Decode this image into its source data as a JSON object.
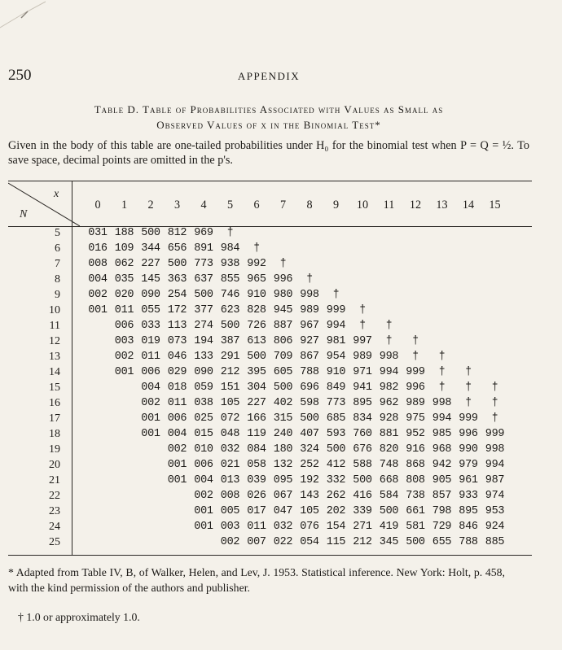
{
  "page": {
    "number": "250",
    "running_head": "APPENDIX"
  },
  "caption": {
    "line1": "Table D. Table of Probabilities Associated with Values as Small as",
    "line2": "Observed Values of x in the Binomial Test*"
  },
  "intro": "Given in the body of this table are one-tailed probabilities under H₀ for the binomial test when P = Q = ½. To save space, decimal points are omitted in the p's.",
  "table": {
    "x_label": "x",
    "n_label": "N",
    "columns": [
      "0",
      "1",
      "2",
      "3",
      "4",
      "5",
      "6",
      "7",
      "8",
      "9",
      "10",
      "11",
      "12",
      "13",
      "14",
      "15"
    ],
    "rows": [
      {
        "n": "5",
        "values": [
          "031",
          "188",
          "500",
          "812",
          "969",
          "†"
        ]
      },
      {
        "n": "6",
        "values": [
          "016",
          "109",
          "344",
          "656",
          "891",
          "984",
          "†"
        ]
      },
      {
        "n": "7",
        "values": [
          "008",
          "062",
          "227",
          "500",
          "773",
          "938",
          "992",
          "†"
        ]
      },
      {
        "n": "8",
        "values": [
          "004",
          "035",
          "145",
          "363",
          "637",
          "855",
          "965",
          "996",
          "†"
        ]
      },
      {
        "n": "9",
        "values": [
          "002",
          "020",
          "090",
          "254",
          "500",
          "746",
          "910",
          "980",
          "998",
          "†"
        ]
      },
      {
        "n": "10",
        "values": [
          "001",
          "011",
          "055",
          "172",
          "377",
          "623",
          "828",
          "945",
          "989",
          "999",
          "†"
        ]
      },
      {
        "n": "11",
        "values": [
          "",
          "006",
          "033",
          "113",
          "274",
          "500",
          "726",
          "887",
          "967",
          "994",
          "†",
          "†"
        ]
      },
      {
        "n": "12",
        "values": [
          "",
          "003",
          "019",
          "073",
          "194",
          "387",
          "613",
          "806",
          "927",
          "981",
          "997",
          "†",
          "†"
        ]
      },
      {
        "n": "13",
        "values": [
          "",
          "002",
          "011",
          "046",
          "133",
          "291",
          "500",
          "709",
          "867",
          "954",
          "989",
          "998",
          "†",
          "†"
        ]
      },
      {
        "n": "14",
        "values": [
          "",
          "001",
          "006",
          "029",
          "090",
          "212",
          "395",
          "605",
          "788",
          "910",
          "971",
          "994",
          "999",
          "†",
          "†"
        ]
      },
      {
        "n": "15",
        "values": [
          "",
          "",
          "004",
          "018",
          "059",
          "151",
          "304",
          "500",
          "696",
          "849",
          "941",
          "982",
          "996",
          "†",
          "†",
          "†"
        ]
      },
      {
        "n": "16",
        "values": [
          "",
          "",
          "002",
          "011",
          "038",
          "105",
          "227",
          "402",
          "598",
          "773",
          "895",
          "962",
          "989",
          "998",
          "†",
          "†"
        ]
      },
      {
        "n": "17",
        "values": [
          "",
          "",
          "001",
          "006",
          "025",
          "072",
          "166",
          "315",
          "500",
          "685",
          "834",
          "928",
          "975",
          "994",
          "999",
          "†"
        ]
      },
      {
        "n": "18",
        "values": [
          "",
          "",
          "001",
          "004",
          "015",
          "048",
          "119",
          "240",
          "407",
          "593",
          "760",
          "881",
          "952",
          "985",
          "996",
          "999"
        ]
      },
      {
        "n": "19",
        "values": [
          "",
          "",
          "",
          "002",
          "010",
          "032",
          "084",
          "180",
          "324",
          "500",
          "676",
          "820",
          "916",
          "968",
          "990",
          "998"
        ]
      },
      {
        "n": "20",
        "values": [
          "",
          "",
          "",
          "001",
          "006",
          "021",
          "058",
          "132",
          "252",
          "412",
          "588",
          "748",
          "868",
          "942",
          "979",
          "994"
        ]
      },
      {
        "n": "21",
        "values": [
          "",
          "",
          "",
          "001",
          "004",
          "013",
          "039",
          "095",
          "192",
          "332",
          "500",
          "668",
          "808",
          "905",
          "961",
          "987"
        ]
      },
      {
        "n": "22",
        "values": [
          "",
          "",
          "",
          "",
          "002",
          "008",
          "026",
          "067",
          "143",
          "262",
          "416",
          "584",
          "738",
          "857",
          "933",
          "974"
        ]
      },
      {
        "n": "23",
        "values": [
          "",
          "",
          "",
          "",
          "001",
          "005",
          "017",
          "047",
          "105",
          "202",
          "339",
          "500",
          "661",
          "798",
          "895",
          "953"
        ]
      },
      {
        "n": "24",
        "values": [
          "",
          "",
          "",
          "",
          "001",
          "003",
          "011",
          "032",
          "076",
          "154",
          "271",
          "419",
          "581",
          "729",
          "846",
          "924"
        ]
      },
      {
        "n": "25",
        "values": [
          "",
          "",
          "",
          "",
          "",
          "002",
          "007",
          "022",
          "054",
          "115",
          "212",
          "345",
          "500",
          "655",
          "788",
          "885"
        ]
      }
    ]
  },
  "footnote": {
    "source": "* Adapted from Table IV, B, of Walker, Helen, and Lev, J. 1953. Statistical inference. New York: Holt, p. 458, with the kind permission of the authors and publisher.",
    "dagger": "† 1.0 or approximately 1.0."
  }
}
